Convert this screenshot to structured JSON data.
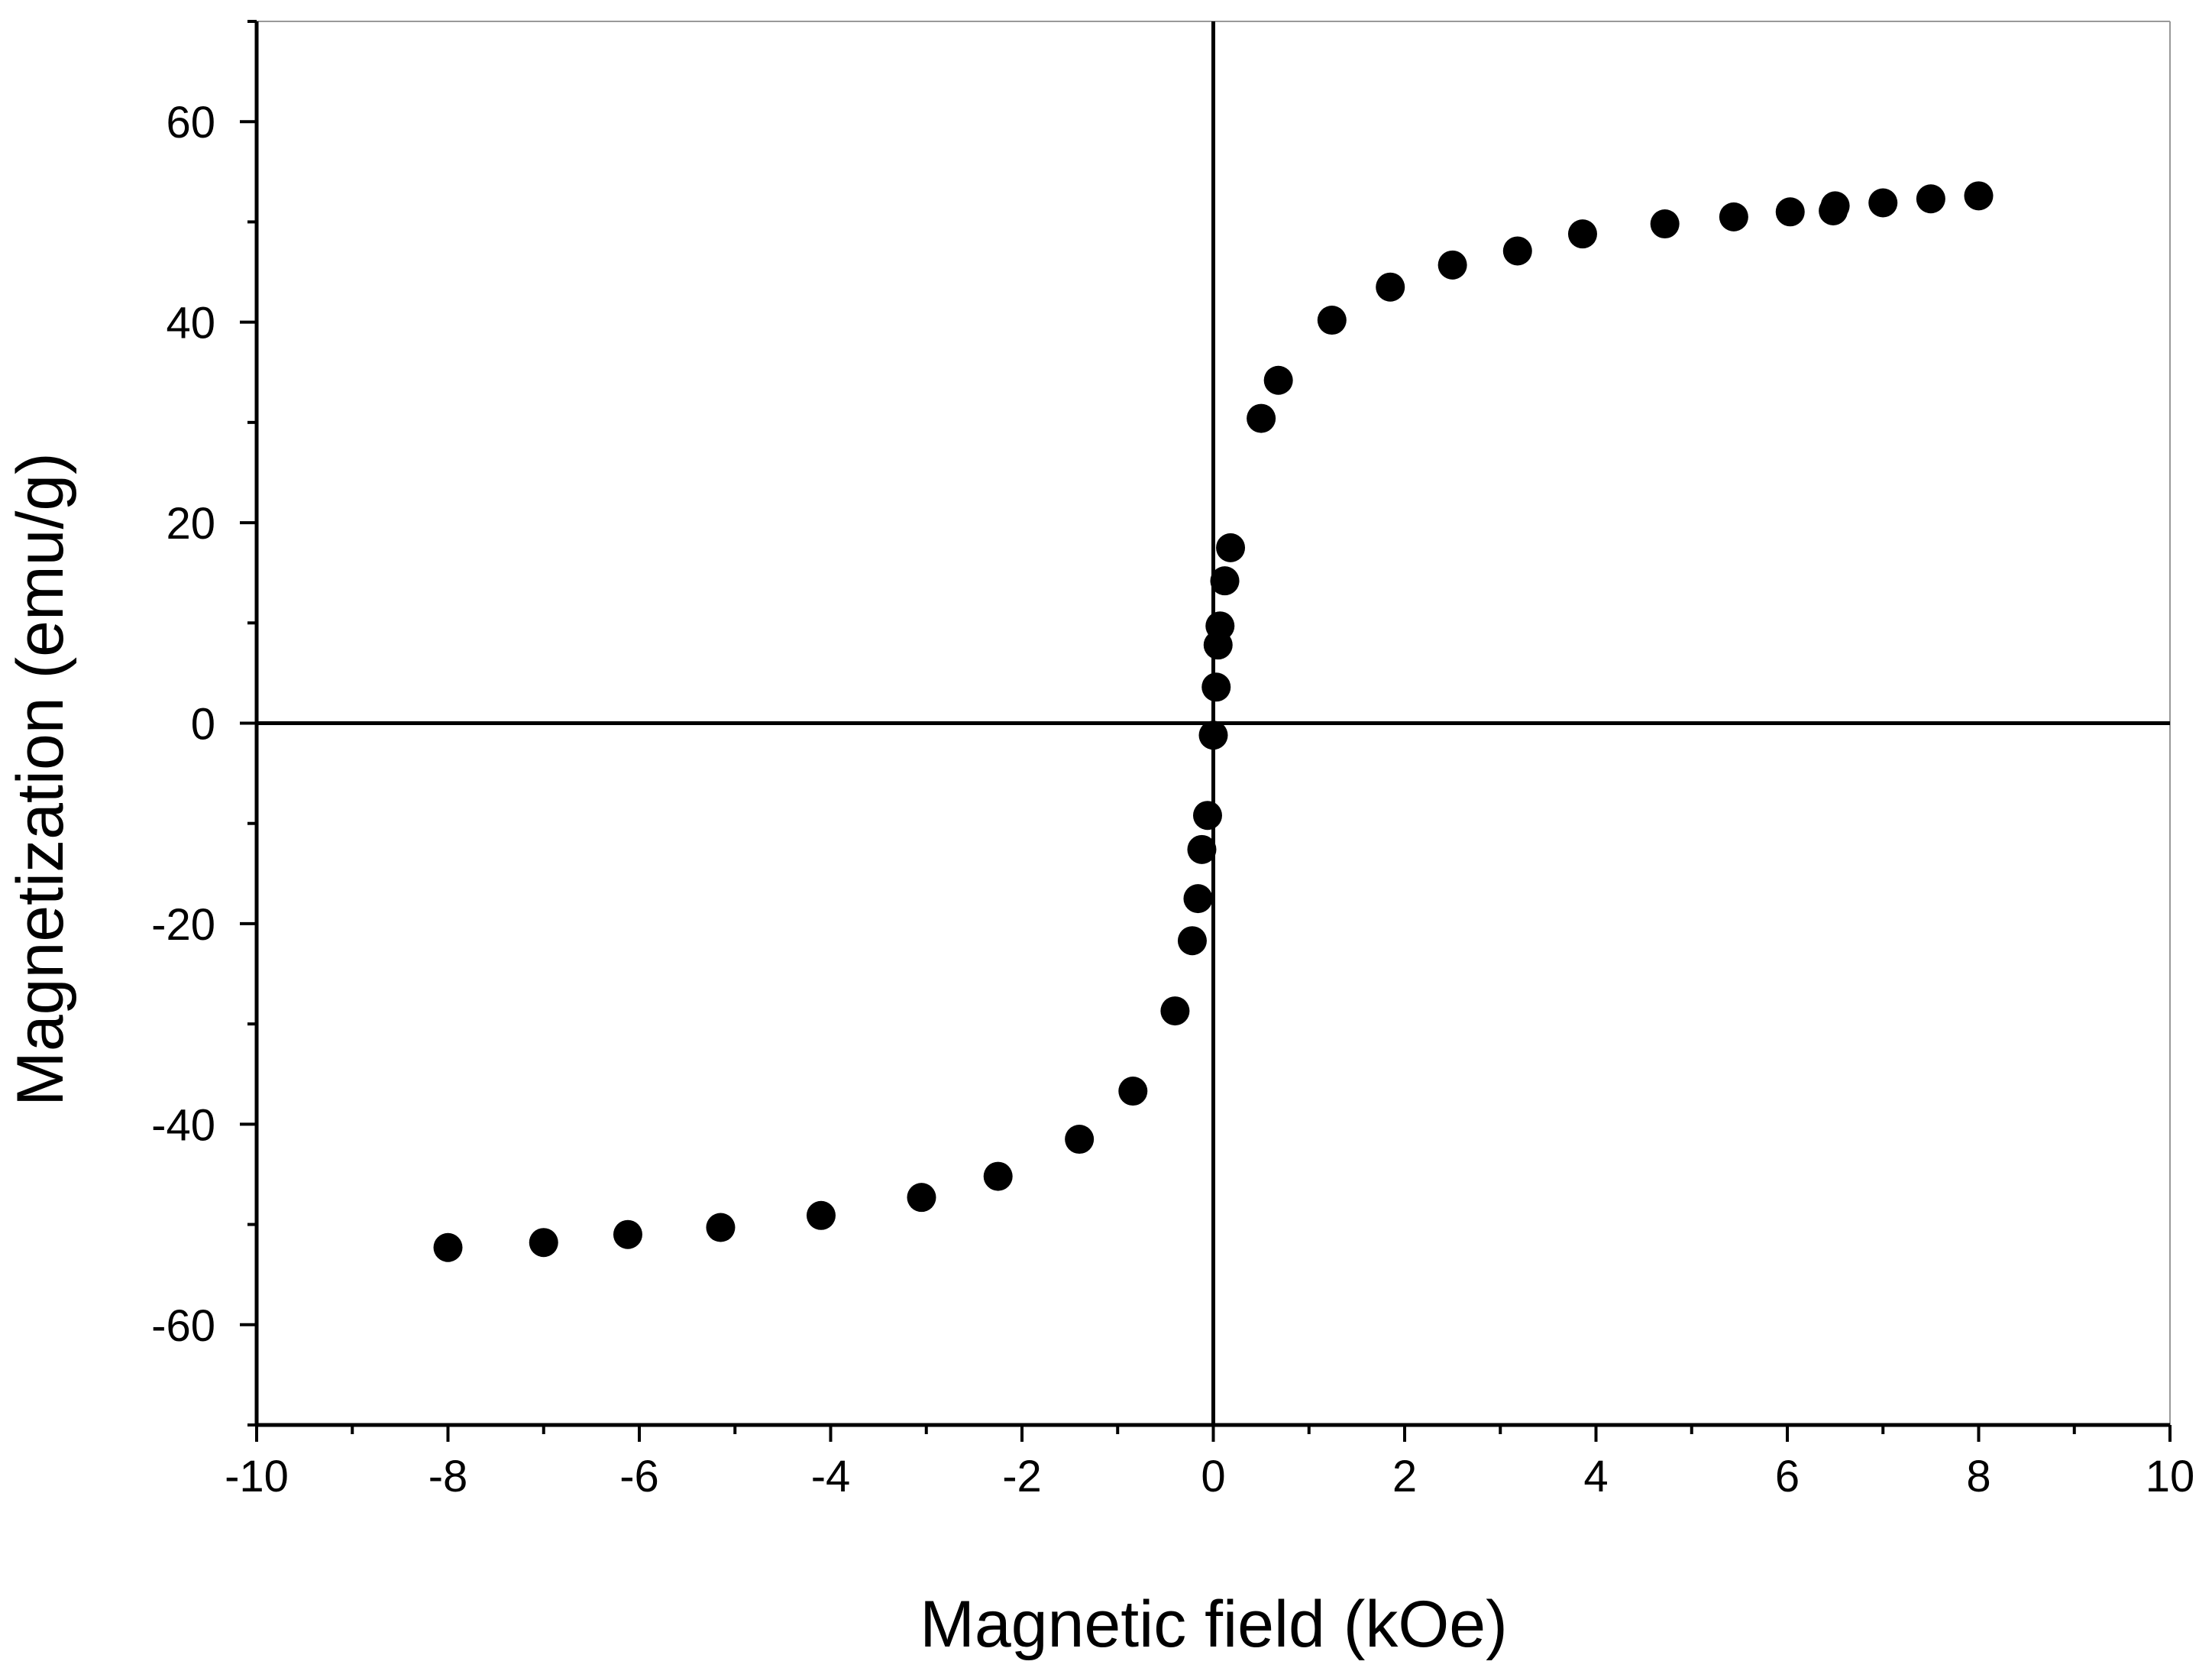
{
  "chart_data": {
    "type": "scatter",
    "title": "",
    "xlabel": "Magnetic field (kOe)",
    "ylabel": "Magnetization (emu/g)",
    "xlim": [
      -10,
      10
    ],
    "ylim": [
      -70,
      70
    ],
    "x_ticks": [
      -10,
      -8,
      -6,
      -4,
      -2,
      0,
      2,
      4,
      6,
      8,
      10
    ],
    "y_ticks": [
      -60,
      -40,
      -20,
      0,
      20,
      40,
      60
    ],
    "x_tick_labels": [
      "-10",
      "-8",
      "-6",
      "-4",
      "-2",
      "0",
      "2",
      "4",
      "6",
      "8",
      "10"
    ],
    "y_tick_labels": [
      "-60",
      "-40",
      "-20",
      "0",
      "20",
      "40",
      "60"
    ],
    "zero_lines": true,
    "grid": false,
    "marker": "filled-circle",
    "marker_color": "#000000",
    "series": [
      {
        "name": "Magnetization",
        "points": [
          [
            -8.0,
            -52.3
          ],
          [
            -7.0,
            -51.8
          ],
          [
            -6.12,
            -51.0
          ],
          [
            -5.15,
            -50.3
          ],
          [
            -4.1,
            -49.1
          ],
          [
            -3.05,
            -47.3
          ],
          [
            -2.25,
            -45.2
          ],
          [
            -1.4,
            -41.5
          ],
          [
            -0.84,
            -36.7
          ],
          [
            -0.4,
            -28.7
          ],
          [
            -0.22,
            -21.7
          ],
          [
            -0.16,
            -17.5
          ],
          [
            -0.12,
            -12.6
          ],
          [
            -0.06,
            -9.2
          ],
          [
            0.0,
            -1.2
          ],
          [
            0.03,
            3.6
          ],
          [
            0.05,
            7.8
          ],
          [
            0.07,
            9.7
          ],
          [
            0.12,
            14.2
          ],
          [
            0.18,
            17.5
          ],
          [
            0.5,
            30.4
          ],
          [
            0.68,
            34.2
          ],
          [
            1.24,
            40.2
          ],
          [
            1.85,
            43.5
          ],
          [
            2.5,
            45.7
          ],
          [
            3.18,
            47.1
          ],
          [
            3.86,
            48.8
          ],
          [
            4.72,
            49.8
          ],
          [
            5.44,
            50.5
          ],
          [
            6.03,
            51.0
          ],
          [
            6.48,
            51.1
          ],
          [
            6.5,
            51.6
          ],
          [
            7.0,
            51.9
          ],
          [
            7.5,
            52.3
          ],
          [
            8.0,
            52.6
          ]
        ]
      }
    ]
  }
}
